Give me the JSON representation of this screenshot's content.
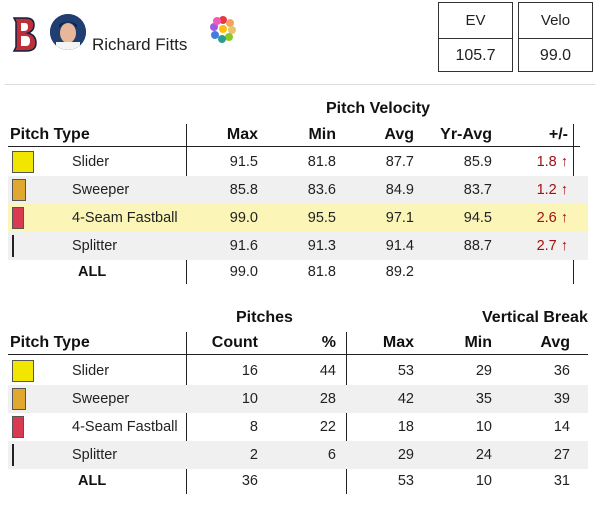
{
  "player": {
    "name": "Richard Fitts"
  },
  "stat_boxes": [
    {
      "label": "EV",
      "value": "105.7"
    },
    {
      "label": "Velo",
      "value": "99.0"
    }
  ],
  "colors": {
    "slider": "#f2e600",
    "sweeper": "#e0a830",
    "four_seam": "#d93a50",
    "splitter": "#222222",
    "highlight": "#fbf6b8"
  },
  "velocity": {
    "title": "Pitch Velocity",
    "headers": {
      "type": "Pitch Type",
      "max": "Max",
      "min": "Min",
      "avg": "Avg",
      "yr_avg": "Yr-Avg",
      "diff": "+/-"
    },
    "rows": [
      {
        "type": "Slider",
        "max": "91.5",
        "min": "81.8",
        "avg": "87.7",
        "yr_avg": "85.9",
        "diff": "1.8 ↑"
      },
      {
        "type": "Sweeper",
        "max": "85.8",
        "min": "83.6",
        "avg": "84.9",
        "yr_avg": "83.7",
        "diff": "1.2 ↑"
      },
      {
        "type": "4-Seam Fastball",
        "max": "99.0",
        "min": "95.5",
        "avg": "97.1",
        "yr_avg": "94.5",
        "diff": "2.6 ↑"
      },
      {
        "type": "Splitter",
        "max": "91.6",
        "min": "91.3",
        "avg": "91.4",
        "yr_avg": "88.7",
        "diff": "2.7 ↑"
      }
    ],
    "all": {
      "label": "ALL",
      "max": "99.0",
      "min": "81.8",
      "avg": "89.2"
    }
  },
  "pitches": {
    "title": "Pitches",
    "vb_title": "Vertical Break",
    "headers": {
      "type": "Pitch Type",
      "count": "Count",
      "pct": "%",
      "max": "Max",
      "min": "Min",
      "avg": "Avg"
    },
    "rows": [
      {
        "type": "Slider",
        "count": "16",
        "pct": "44",
        "max": "53",
        "min": "29",
        "avg": "36"
      },
      {
        "type": "Sweeper",
        "count": "10",
        "pct": "28",
        "max": "42",
        "min": "35",
        "avg": "39"
      },
      {
        "type": "4-Seam Fastball",
        "count": "8",
        "pct": "22",
        "max": "18",
        "min": "10",
        "avg": "14"
      },
      {
        "type": "Splitter",
        "count": "2",
        "pct": "6",
        "max": "29",
        "min": "24",
        "avg": "27"
      }
    ],
    "all": {
      "label": "ALL",
      "count": "36",
      "max": "53",
      "min": "10",
      "avg": "31"
    }
  }
}
